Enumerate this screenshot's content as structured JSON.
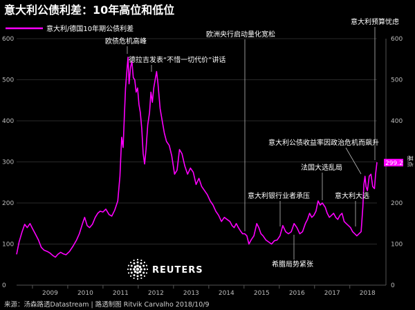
{
  "title": "意大利公债利差：10年高位和低位",
  "legend_label": "意大利/德国10年期公债利差",
  "source": "来源：汤森路透Datastream | 路透制图 Ritvik Carvalho 2018/10/9",
  "brand": "REUTERS",
  "unit_label": "基点",
  "last_value_label": "299.2",
  "colors": {
    "series": "#ff00ff",
    "background": "#000000",
    "grid": "#2a2a2a",
    "axis": "#555555"
  },
  "chart_data": {
    "type": "line",
    "ylim": [
      0,
      600
    ],
    "xlim": [
      2008.55,
      2018.77
    ],
    "y_ticks": [
      0,
      100,
      200,
      300,
      400,
      500,
      600
    ],
    "y_tick_labels": [
      "0",
      "100",
      "200",
      "300",
      "400",
      "500",
      "600"
    ],
    "x_tick_labels": [
      {
        "year": 2009,
        "label": "2009"
      },
      {
        "year": 2010,
        "label": "2010"
      },
      {
        "year": 2011,
        "label": "2011"
      },
      {
        "year": 2012,
        "label": "2012"
      },
      {
        "year": 2013,
        "label": "2013"
      },
      {
        "year": 2014,
        "label": "2014"
      },
      {
        "year": 2015,
        "label": "2015"
      },
      {
        "year": 2016,
        "label": "2016"
      },
      {
        "year": 2017,
        "label": "2017"
      },
      {
        "year": 2018,
        "label": "2018"
      }
    ],
    "grid": "horizontal",
    "legend": "top-left",
    "series": [
      {
        "name": "意大利/德国10年期公债利差",
        "color": "#ff00ff",
        "points": [
          [
            2008.55,
            75
          ],
          [
            2008.62,
            105
          ],
          [
            2008.7,
            128
          ],
          [
            2008.78,
            148
          ],
          [
            2008.85,
            140
          ],
          [
            2008.93,
            150
          ],
          [
            2009.0,
            138
          ],
          [
            2009.08,
            125
          ],
          [
            2009.17,
            110
          ],
          [
            2009.25,
            92
          ],
          [
            2009.33,
            85
          ],
          [
            2009.42,
            82
          ],
          [
            2009.5,
            78
          ],
          [
            2009.58,
            72
          ],
          [
            2009.65,
            68
          ],
          [
            2009.72,
            75
          ],
          [
            2009.8,
            80
          ],
          [
            2009.88,
            76
          ],
          [
            2009.95,
            74
          ],
          [
            2010.05,
            82
          ],
          [
            2010.15,
            95
          ],
          [
            2010.25,
            110
          ],
          [
            2010.33,
            125
          ],
          [
            2010.42,
            150
          ],
          [
            2010.48,
            165
          ],
          [
            2010.55,
            145
          ],
          [
            2010.62,
            140
          ],
          [
            2010.7,
            148
          ],
          [
            2010.78,
            165
          ],
          [
            2010.85,
            175
          ],
          [
            2010.92,
            180
          ],
          [
            2011.0,
            178
          ],
          [
            2011.08,
            185
          ],
          [
            2011.17,
            172
          ],
          [
            2011.25,
            168
          ],
          [
            2011.33,
            182
          ],
          [
            2011.42,
            205
          ],
          [
            2011.48,
            265
          ],
          [
            2011.53,
            360
          ],
          [
            2011.57,
            335
          ],
          [
            2011.61,
            420
          ],
          [
            2011.64,
            480
          ],
          [
            2011.68,
            525
          ],
          [
            2011.71,
            555
          ],
          [
            2011.74,
            490
          ],
          [
            2011.78,
            530
          ],
          [
            2011.82,
            545
          ],
          [
            2011.86,
            505
          ],
          [
            2011.9,
            500
          ],
          [
            2011.94,
            470
          ],
          [
            2011.98,
            480
          ],
          [
            2012.02,
            440
          ],
          [
            2012.06,
            420
          ],
          [
            2012.1,
            380
          ],
          [
            2012.14,
            320
          ],
          [
            2012.18,
            295
          ],
          [
            2012.22,
            330
          ],
          [
            2012.27,
            390
          ],
          [
            2012.32,
            420
          ],
          [
            2012.36,
            470
          ],
          [
            2012.4,
            445
          ],
          [
            2012.44,
            480
          ],
          [
            2012.48,
            500
          ],
          [
            2012.52,
            520
          ],
          [
            2012.56,
            490
          ],
          [
            2012.62,
            430
          ],
          [
            2012.68,
            400
          ],
          [
            2012.74,
            370
          ],
          [
            2012.8,
            350
          ],
          [
            2012.88,
            340
          ],
          [
            2012.95,
            315
          ],
          [
            2013.03,
            270
          ],
          [
            2013.1,
            280
          ],
          [
            2013.17,
            330
          ],
          [
            2013.24,
            320
          ],
          [
            2013.32,
            290
          ],
          [
            2013.4,
            270
          ],
          [
            2013.48,
            285
          ],
          [
            2013.56,
            275
          ],
          [
            2013.64,
            245
          ],
          [
            2013.72,
            260
          ],
          [
            2013.8,
            240
          ],
          [
            2013.88,
            230
          ],
          [
            2013.96,
            220
          ],
          [
            2014.04,
            205
          ],
          [
            2014.12,
            195
          ],
          [
            2014.2,
            180
          ],
          [
            2014.28,
            170
          ],
          [
            2014.36,
            155
          ],
          [
            2014.44,
            165
          ],
          [
            2014.52,
            160
          ],
          [
            2014.6,
            155
          ],
          [
            2014.66,
            145
          ],
          [
            2014.72,
            140
          ],
          [
            2014.78,
            150
          ],
          [
            2014.84,
            140
          ],
          [
            2014.9,
            132
          ],
          [
            2014.96,
            125
          ],
          [
            2015.02,
            125
          ],
          [
            2015.08,
            120
          ],
          [
            2015.14,
            100
          ],
          [
            2015.2,
            110
          ],
          [
            2015.28,
            120
          ],
          [
            2015.36,
            150
          ],
          [
            2015.42,
            140
          ],
          [
            2015.48,
            125
          ],
          [
            2015.54,
            120
          ],
          [
            2015.62,
            110
          ],
          [
            2015.7,
            105
          ],
          [
            2015.78,
            100
          ],
          [
            2015.86,
            108
          ],
          [
            2015.94,
            110
          ],
          [
            2016.02,
            120
          ],
          [
            2016.1,
            145
          ],
          [
            2016.18,
            130
          ],
          [
            2016.26,
            125
          ],
          [
            2016.34,
            130
          ],
          [
            2016.42,
            150
          ],
          [
            2016.5,
            140
          ],
          [
            2016.58,
            125
          ],
          [
            2016.66,
            130
          ],
          [
            2016.74,
            150
          ],
          [
            2016.8,
            160
          ],
          [
            2016.86,
            175
          ],
          [
            2016.92,
            165
          ],
          [
            2016.98,
            170
          ],
          [
            2017.04,
            180
          ],
          [
            2017.1,
            205
          ],
          [
            2017.16,
            195
          ],
          [
            2017.22,
            200
          ],
          [
            2017.3,
            190
          ],
          [
            2017.36,
            175
          ],
          [
            2017.42,
            165
          ],
          [
            2017.48,
            170
          ],
          [
            2017.54,
            175
          ],
          [
            2017.6,
            165
          ],
          [
            2017.66,
            160
          ],
          [
            2017.72,
            170
          ],
          [
            2017.78,
            175
          ],
          [
            2017.84,
            155
          ],
          [
            2017.9,
            150
          ],
          [
            2017.96,
            145
          ],
          [
            2018.02,
            140
          ],
          [
            2018.08,
            130
          ],
          [
            2018.14,
            125
          ],
          [
            2018.2,
            120
          ],
          [
            2018.26,
            125
          ],
          [
            2018.32,
            130
          ],
          [
            2018.37,
            190
          ],
          [
            2018.4,
            245
          ],
          [
            2018.43,
            265
          ],
          [
            2018.46,
            240
          ],
          [
            2018.5,
            230
          ],
          [
            2018.55,
            265
          ],
          [
            2018.6,
            270
          ],
          [
            2018.65,
            240
          ],
          [
            2018.7,
            235
          ],
          [
            2018.73,
            270
          ],
          [
            2018.77,
            299.2
          ]
        ]
      }
    ],
    "annotations": [
      {
        "id": "debt-crisis-peak",
        "text": "欧债危机高峰"
      },
      {
        "id": "draghi-speech",
        "text": "德拉吉发表“不惜一切代价”讲话"
      },
      {
        "id": "ecb-qe",
        "text": "欧洲央行启动量化宽松"
      },
      {
        "id": "budget-worry",
        "text": "意大利预算忧虑"
      },
      {
        "id": "political-crisis",
        "text": "意大利公债收益率因政治危机而飙升"
      },
      {
        "id": "french-election",
        "text": "法国大选乱局"
      },
      {
        "id": "bank-stress",
        "text": "意大利银行业者承压"
      },
      {
        "id": "italy-election",
        "text": "意大利大选"
      },
      {
        "id": "greece-tension",
        "text": "希腊局势紧张"
      }
    ]
  }
}
